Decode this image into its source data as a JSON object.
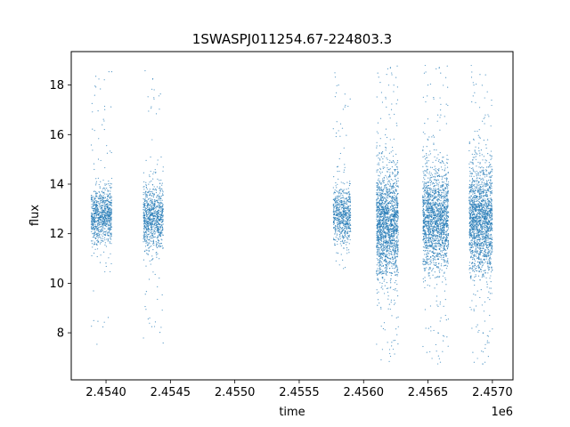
{
  "chart_data": {
    "type": "scatter",
    "title": "1SWASPJ011254.67-224803.3",
    "xlabel": "time",
    "ylabel": "flux",
    "x_offset_label": "1e6",
    "xlim": [
      2453730,
      2457160
    ],
    "ylim": [
      6.1,
      19.35
    ],
    "x_ticks": [
      {
        "value": 2454000,
        "label": "2.4540"
      },
      {
        "value": 2454500,
        "label": "2.4545"
      },
      {
        "value": 2455000,
        "label": "2.4550"
      },
      {
        "value": 2455500,
        "label": "2.4555"
      },
      {
        "value": 2456000,
        "label": "2.4560"
      },
      {
        "value": 2456500,
        "label": "2.4565"
      },
      {
        "value": 2457000,
        "label": "2.4570"
      }
    ],
    "y_ticks": [
      {
        "value": 8,
        "label": "8"
      },
      {
        "value": 10,
        "label": "10"
      },
      {
        "value": 12,
        "label": "12"
      },
      {
        "value": 14,
        "label": "14"
      },
      {
        "value": 16,
        "label": "16"
      },
      {
        "value": 18,
        "label": "18"
      }
    ],
    "grid": false,
    "marker_color": "#1f77b4",
    "series": [
      {
        "name": "",
        "segments": [
          {
            "x_start": 2453885,
            "x_end": 2454045,
            "y_center": 12.7,
            "y_spread": 0.55,
            "y_min": 7.3,
            "y_max": 18.7,
            "points": 900
          },
          {
            "x_start": 2454290,
            "x_end": 2454445,
            "y_center": 12.6,
            "y_spread": 0.65,
            "y_min": 6.8,
            "y_max": 18.6,
            "points": 900
          },
          {
            "x_start": 2455765,
            "x_end": 2455900,
            "y_center": 12.7,
            "y_spread": 0.55,
            "y_min": 10.5,
            "y_max": 18.5,
            "points": 700
          },
          {
            "x_start": 2456100,
            "x_end": 2456270,
            "y_center": 12.4,
            "y_spread": 1.1,
            "y_min": 6.7,
            "y_max": 18.8,
            "points": 1800
          },
          {
            "x_start": 2456460,
            "x_end": 2456660,
            "y_center": 12.6,
            "y_spread": 1.0,
            "y_min": 6.6,
            "y_max": 18.8,
            "points": 1800
          },
          {
            "x_start": 2456820,
            "x_end": 2457000,
            "y_center": 12.5,
            "y_spread": 1.1,
            "y_min": 6.6,
            "y_max": 18.8,
            "points": 1800
          }
        ]
      }
    ]
  }
}
